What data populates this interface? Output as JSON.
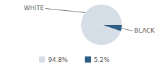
{
  "chart_data": {
    "type": "pie",
    "categories": [
      "WHITE",
      "BLACK"
    ],
    "values": [
      94.8,
      5.2
    ],
    "value_labels": [
      "94.8%",
      "5.2%"
    ],
    "colors": [
      "#d5dde6",
      "#2f5d86"
    ],
    "data_labels": true,
    "legend": "bottom"
  }
}
